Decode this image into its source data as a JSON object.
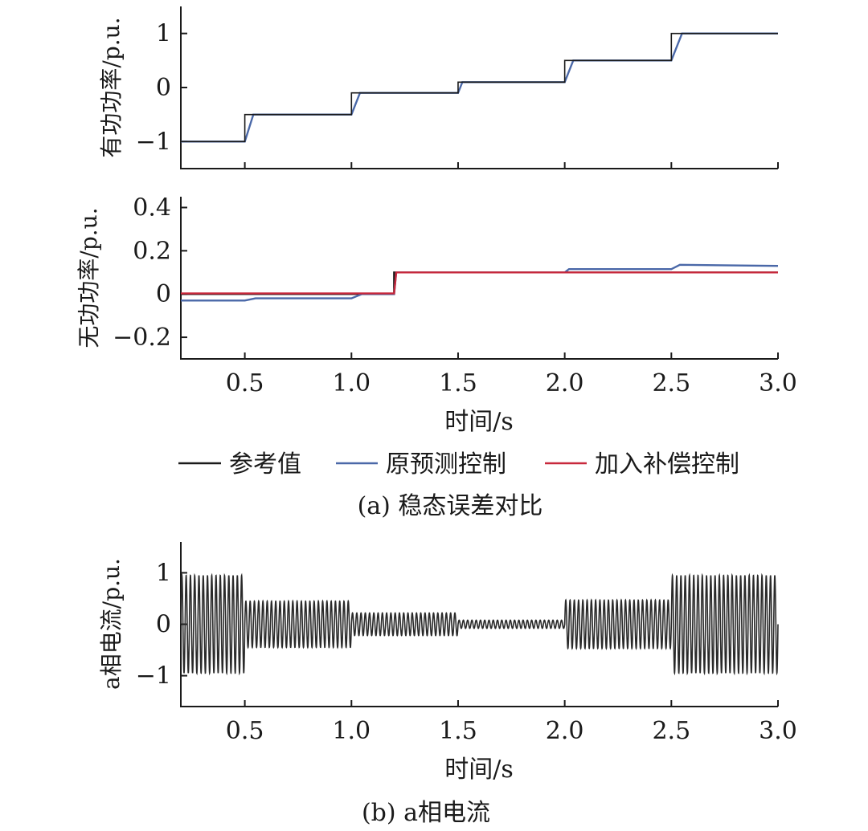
{
  "chart_data": [
    {
      "type": "line",
      "title": "",
      "xlabel": "",
      "ylabel": "有功功率/p.u.",
      "xlim": [
        0.2,
        3.0
      ],
      "ylim": [
        -1.5,
        1.5
      ],
      "xticks": [
        "0.5",
        "1.0",
        "1.5",
        "2.0",
        "2.5",
        "3.0"
      ],
      "yticks": [
        "−1",
        "0",
        "1"
      ],
      "ytick_values": [
        -1,
        0,
        1
      ],
      "series": [
        {
          "name": "参考值",
          "color": "#1a1a1a",
          "x": [
            0.2,
            0.5,
            0.5,
            1.0,
            1.0,
            1.5,
            1.5,
            2.0,
            2.0,
            2.5,
            2.5,
            3.0
          ],
          "y": [
            -1.0,
            -1.0,
            -0.5,
            -0.5,
            -0.1,
            -0.1,
            0.1,
            0.1,
            0.5,
            0.5,
            1.0,
            1.0
          ]
        },
        {
          "name": "原预测控制",
          "color": "#4a68a8",
          "x": [
            0.2,
            0.5,
            0.54,
            1.0,
            1.04,
            1.5,
            1.52,
            2.0,
            2.04,
            2.5,
            2.55,
            3.0
          ],
          "y": [
            -1.0,
            -1.0,
            -0.5,
            -0.5,
            -0.1,
            -0.1,
            0.1,
            0.1,
            0.5,
            0.5,
            1.0,
            1.0
          ]
        }
      ]
    },
    {
      "type": "line",
      "title": "",
      "xlabel": "时间/s",
      "ylabel": "无功功率/p.u.",
      "xlim": [
        0.2,
        3.0
      ],
      "ylim": [
        -0.3,
        0.45
      ],
      "xticks": [
        "0.5",
        "1.0",
        "1.5",
        "2.0",
        "2.5",
        "3.0"
      ],
      "xtick_values": [
        0.5,
        1.0,
        1.5,
        2.0,
        2.5,
        3.0
      ],
      "yticks": [
        "−0.2",
        "0",
        "0.2",
        "0.4"
      ],
      "ytick_values": [
        -0.2,
        0,
        0.2,
        0.4
      ],
      "series": [
        {
          "name": "参考值",
          "color": "#1a1a1a",
          "x": [
            0.2,
            1.2,
            1.2,
            3.0
          ],
          "y": [
            0.0,
            0.0,
            0.1,
            0.1
          ]
        },
        {
          "name": "原预测控制",
          "color": "#4a68a8",
          "x": [
            0.2,
            0.5,
            0.55,
            1.0,
            1.05,
            1.2,
            1.21,
            1.5,
            2.0,
            2.02,
            2.5,
            2.54,
            3.0
          ],
          "y": [
            -0.03,
            -0.03,
            -0.02,
            -0.02,
            0.0,
            0.0,
            0.1,
            0.1,
            0.1,
            0.115,
            0.115,
            0.135,
            0.13
          ]
        },
        {
          "name": "加入补偿控制",
          "color": "#c8283c",
          "x": [
            0.2,
            1.2,
            1.21,
            3.0
          ],
          "y": [
            0.003,
            0.003,
            0.1,
            0.1
          ]
        }
      ]
    },
    {
      "type": "line",
      "title": "",
      "xlabel": "时间/s",
      "ylabel": "a相电流/p.u.",
      "xlim": [
        0.2,
        3.0
      ],
      "ylim": [
        -1.6,
        1.6
      ],
      "xticks": [
        "0.5",
        "1.0",
        "1.5",
        "2.0",
        "2.5",
        "3.0"
      ],
      "xtick_values": [
        0.5,
        1.0,
        1.5,
        2.0,
        2.5,
        3.0
      ],
      "yticks": [
        "−1",
        "0",
        "1"
      ],
      "ytick_values": [
        -1,
        0,
        1
      ],
      "frequency_hz": 50,
      "envelope": [
        {
          "from": 0.2,
          "to": 0.5,
          "amplitude": 0.95
        },
        {
          "from": 0.5,
          "to": 1.0,
          "amplitude": 0.45
        },
        {
          "from": 1.0,
          "to": 1.5,
          "amplitude": 0.22
        },
        {
          "from": 1.5,
          "to": 2.0,
          "amplitude": 0.08
        },
        {
          "from": 2.0,
          "to": 2.5,
          "amplitude": 0.47
        },
        {
          "from": 2.5,
          "to": 3.0,
          "amplitude": 0.95
        }
      ],
      "series": [
        {
          "name": "",
          "color": "#2a2a2a"
        }
      ]
    }
  ],
  "legend": {
    "items": [
      {
        "label": "参考值",
        "color": "#1a1a1a"
      },
      {
        "label": "原预测控制",
        "color": "#4a68a8"
      },
      {
        "label": "加入补偿控制",
        "color": "#c8283c"
      }
    ]
  },
  "captions": {
    "a": "(a) 稳态误差对比",
    "b": "(b) a相电流"
  }
}
